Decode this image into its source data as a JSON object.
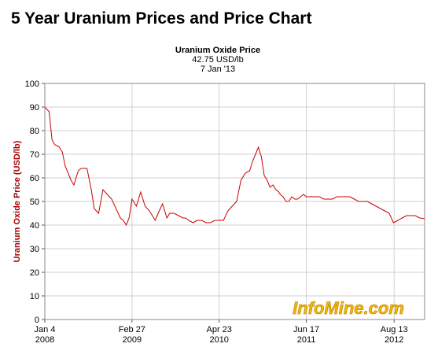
{
  "page": {
    "title": "5 Year Uranium Prices and Price Chart"
  },
  "header": {
    "line1": "Uranium Oxide Price",
    "line2": "42.75 USD/lb",
    "line3": "7 Jan '13"
  },
  "watermark": "InfoMine.com",
  "colors": {
    "line": "#cc0000",
    "ylabel": "#aa0000",
    "grid": "#d0d0d0",
    "axis": "#555555",
    "watermark": "#f5b800"
  },
  "chart_data": {
    "type": "line",
    "title": "Uranium Oxide Price",
    "xlabel": "",
    "ylabel": "Uranium Oxide Price (USD/lb)",
    "ylim": [
      0,
      100
    ],
    "yticks": [
      0,
      10,
      20,
      30,
      40,
      50,
      60,
      70,
      80,
      90,
      100
    ],
    "xlim": [
      "2008-01-04",
      "2013-01-07"
    ],
    "xticks": [
      {
        "date": "2008-01-04",
        "label1": "Jan 4",
        "label2": "2008"
      },
      {
        "date": "2009-02-27",
        "label1": "Feb 27",
        "label2": "2009"
      },
      {
        "date": "2010-04-23",
        "label1": "Apr 23",
        "label2": "2010"
      },
      {
        "date": "2011-06-17",
        "label1": "Jun 17",
        "label2": "2011"
      },
      {
        "date": "2012-08-13",
        "label1": "Aug 13",
        "label2": "2012"
      }
    ],
    "grid": true,
    "series": [
      {
        "name": "Uranium Oxide Price",
        "x": [
          "2008-01-04",
          "2008-01-25",
          "2008-02-08",
          "2008-02-22",
          "2008-03-14",
          "2008-03-28",
          "2008-04-11",
          "2008-04-25",
          "2008-05-09",
          "2008-05-23",
          "2008-06-13",
          "2008-06-27",
          "2008-07-11",
          "2008-07-25",
          "2008-08-15",
          "2008-08-29",
          "2008-09-19",
          "2008-10-10",
          "2008-10-31",
          "2008-11-21",
          "2008-12-12",
          "2009-01-02",
          "2009-01-16",
          "2009-01-30",
          "2009-02-13",
          "2009-02-27",
          "2009-03-20",
          "2009-04-10",
          "2009-05-01",
          "2009-05-22",
          "2009-06-05",
          "2009-06-19",
          "2009-07-03",
          "2009-07-24",
          "2009-08-14",
          "2009-08-28",
          "2009-09-18",
          "2009-10-09",
          "2009-10-30",
          "2009-11-13",
          "2009-11-27",
          "2009-12-18",
          "2010-01-08",
          "2010-01-29",
          "2010-02-19",
          "2010-03-12",
          "2010-04-02",
          "2010-04-23",
          "2010-05-14",
          "2010-06-04",
          "2010-06-25",
          "2010-07-16",
          "2010-08-06",
          "2010-08-27",
          "2010-09-17",
          "2010-10-01",
          "2010-10-15",
          "2010-10-29",
          "2010-11-12",
          "2010-11-26",
          "2010-12-10",
          "2010-12-24",
          "2011-01-07",
          "2011-01-21",
          "2011-02-04",
          "2011-02-11",
          "2011-02-25",
          "2011-03-11",
          "2011-03-25",
          "2011-04-08",
          "2011-04-22",
          "2011-05-06",
          "2011-05-20",
          "2011-06-03",
          "2011-06-17",
          "2011-07-08",
          "2011-07-29",
          "2011-08-19",
          "2011-09-09",
          "2011-09-30",
          "2011-10-21",
          "2011-11-11",
          "2011-12-02",
          "2011-12-23",
          "2012-01-13",
          "2012-02-03",
          "2012-02-24",
          "2012-03-16",
          "2012-04-06",
          "2012-04-27",
          "2012-05-18",
          "2012-06-08",
          "2012-06-29",
          "2012-07-20",
          "2012-08-10",
          "2012-08-31",
          "2012-09-21",
          "2012-10-12",
          "2012-11-02",
          "2012-11-23",
          "2012-12-14",
          "2013-01-07"
        ],
        "values": [
          90,
          88,
          76,
          74,
          73,
          71,
          65,
          62,
          59,
          57,
          63,
          64,
          64,
          64,
          55,
          47,
          45,
          55,
          53,
          51,
          47,
          43,
          42,
          40,
          43,
          51,
          48,
          54,
          48,
          46,
          44,
          42,
          45,
          49,
          43,
          45,
          45,
          44,
          43,
          43,
          42,
          41,
          42,
          42,
          41,
          41,
          42,
          42,
          42,
          46,
          48,
          50,
          59,
          62,
          63,
          67,
          70,
          73,
          69,
          61,
          59,
          56,
          57,
          55,
          54,
          53,
          52,
          50,
          50,
          52,
          51,
          51,
          52,
          53,
          52,
          52,
          52,
          52,
          51,
          51,
          51,
          52,
          52,
          52,
          52,
          51,
          50,
          50,
          50,
          49,
          48,
          47,
          46,
          45,
          41,
          42,
          43,
          44,
          44,
          44,
          43,
          42.75
        ]
      }
    ]
  }
}
